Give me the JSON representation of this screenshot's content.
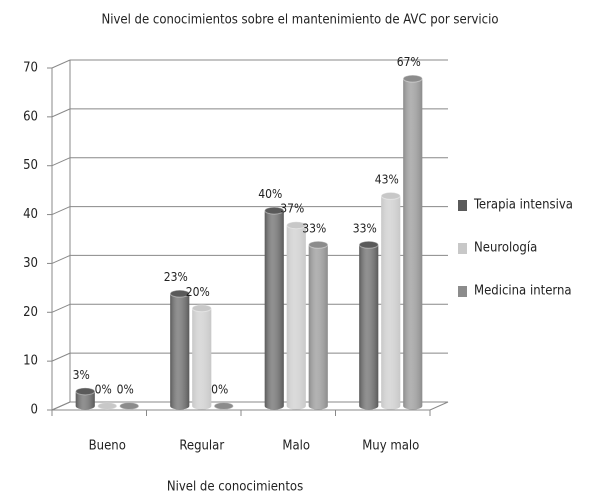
{
  "chart_data": {
    "type": "bar3d",
    "title": "Nivel de conocimientos sobre el mantenimiento de AVC por servicio",
    "x_label": "Nivel de conocimientos",
    "categories": [
      "Bueno",
      "Regular",
      "Malo",
      "Muy malo"
    ],
    "series": [
      {
        "name": "Terapia intensiva",
        "color": "#5a5a5a",
        "values": [
          3,
          23,
          40,
          33
        ],
        "value_labels": [
          "3%",
          "23%",
          "40%",
          "33%"
        ]
      },
      {
        "name": "Neurología",
        "color": "#c8c8c8",
        "values": [
          0,
          20,
          37,
          43
        ],
        "value_labels": [
          "0%",
          "20%",
          "37%",
          "43%"
        ]
      },
      {
        "name": "Medicina interna",
        "color": "#8c8c8c",
        "values": [
          0,
          0,
          33,
          67
        ],
        "value_labels": [
          "0%",
          "0%",
          "33%",
          "67%"
        ]
      }
    ],
    "ylim": [
      0,
      70
    ],
    "yticks": [
      0,
      10,
      20,
      30,
      40,
      50,
      60,
      70
    ],
    "grid": true,
    "legend": "right"
  }
}
